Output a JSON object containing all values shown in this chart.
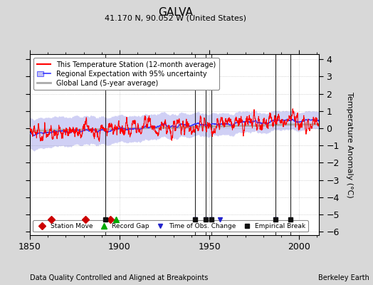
{
  "title": "GALVA",
  "subtitle": "41.170 N, 90.052 W (United States)",
  "ylabel": "Temperature Anomaly (°C)",
  "xlabel_left": "Data Quality Controlled and Aligned at Breakpoints",
  "xlabel_right": "Berkeley Earth",
  "ylim": [
    -6.2,
    4.3
  ],
  "xlim": [
    1850,
    2011
  ],
  "yticks": [
    -6,
    -5,
    -4,
    -3,
    -2,
    -1,
    0,
    1,
    2,
    3,
    4
  ],
  "xticks": [
    1850,
    1900,
    1950,
    2000
  ],
  "bg_color": "#d8d8d8",
  "plot_bg_color": "#ffffff",
  "red_color": "#ff0000",
  "blue_color": "#3333ff",
  "band_color": "#aaaaee",
  "gray_color": "#aaaaaa",
  "station_moves": [
    1862,
    1881,
    1895
  ],
  "record_gaps": [
    1898
  ],
  "tobs_changes": [
    1942,
    1948,
    1951,
    1956,
    1987
  ],
  "emp_breaks": [
    1892,
    1942,
    1948,
    1951,
    1987,
    1995
  ],
  "vlines": [
    1892,
    1942,
    1948,
    1951,
    1987,
    1995
  ],
  "marker_legend": [
    {
      "label": "Station Move",
      "marker": "D",
      "color": "#cc0000"
    },
    {
      "label": "Record Gap",
      "marker": "^",
      "color": "#00aa00"
    },
    {
      "label": "Time of Obs. Change",
      "marker": "v",
      "color": "#2222cc"
    },
    {
      "label": "Empirical Break",
      "marker": "s",
      "color": "#111111"
    }
  ],
  "seed": 42
}
